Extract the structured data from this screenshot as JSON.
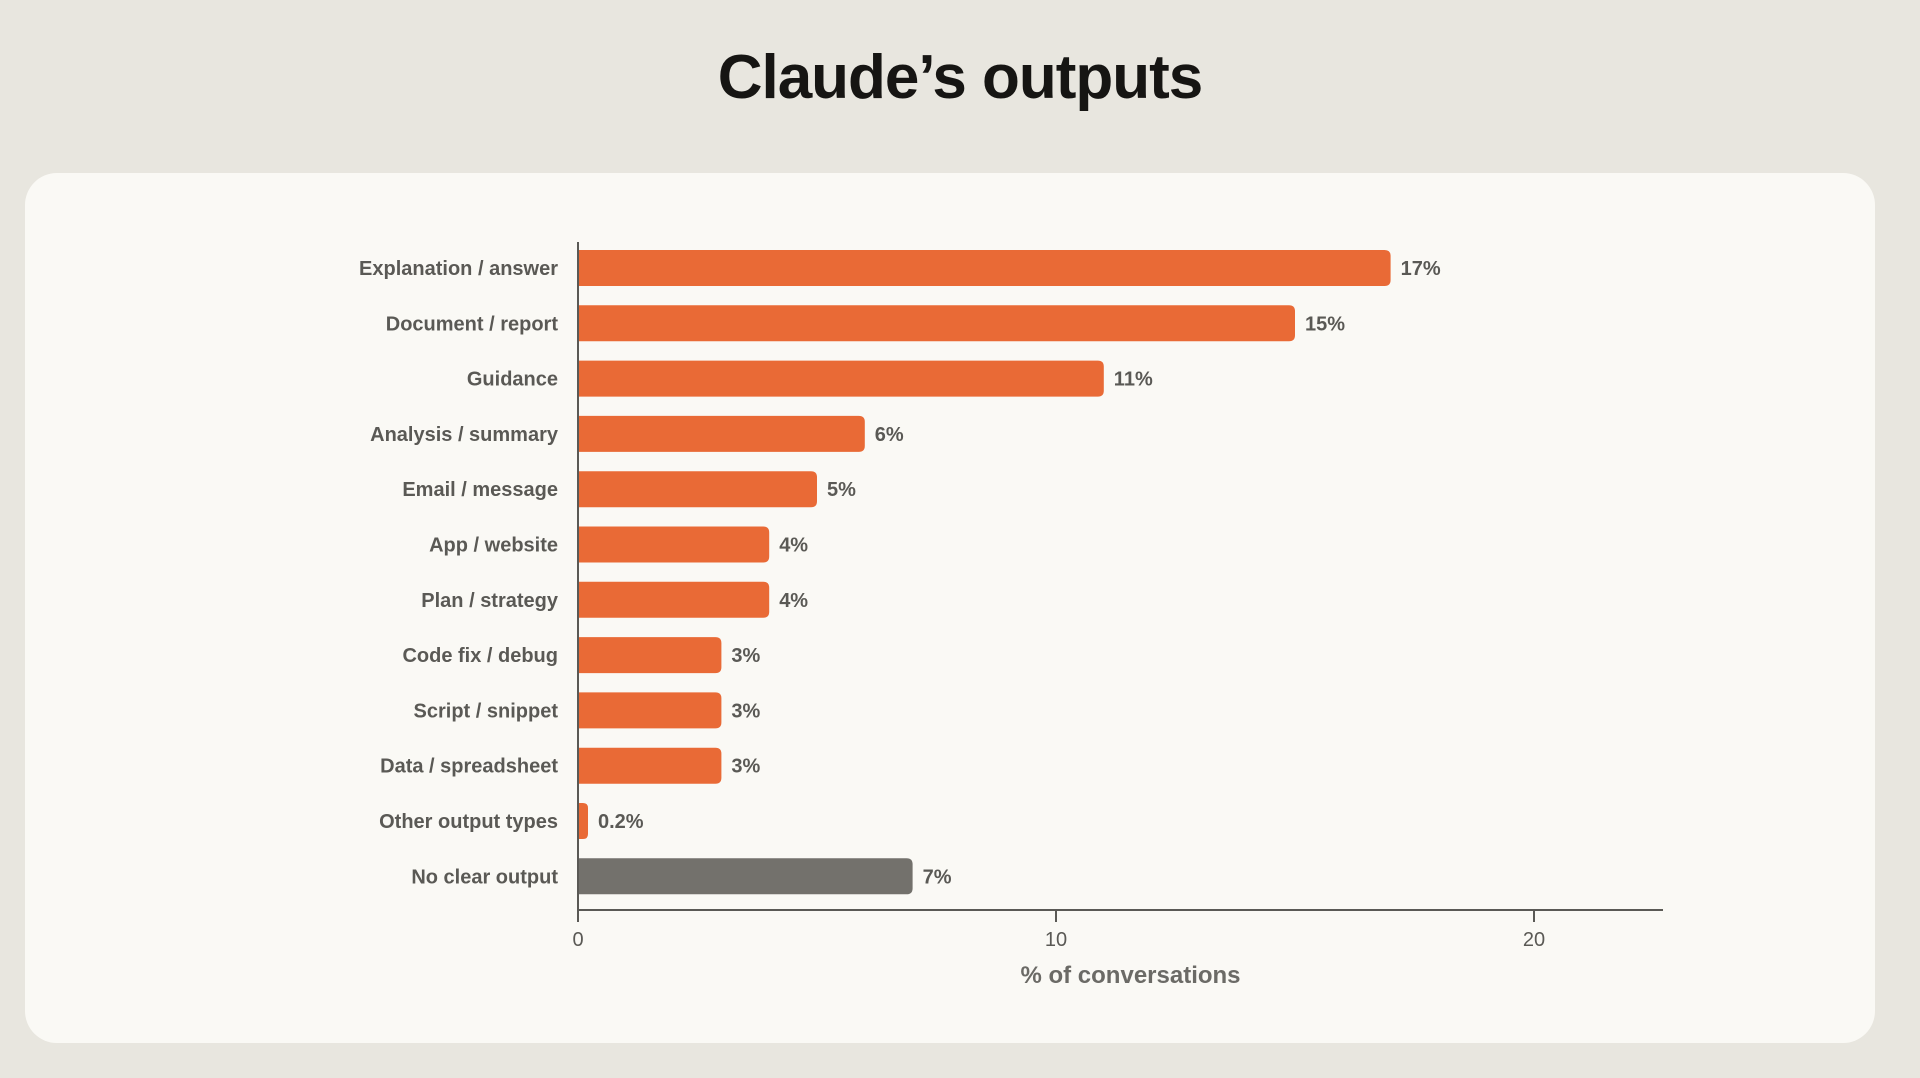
{
  "title": "Claude’s outputs",
  "colors": {
    "page_background": "#e8e6df",
    "card_background": "#faf9f5",
    "bar_primary": "#e96a36",
    "bar_secondary": "#73716c",
    "axis": "#5a5955",
    "text": "#5a5955"
  },
  "chart_data": {
    "type": "bar",
    "orientation": "horizontal",
    "title": "Claude’s outputs",
    "xlabel": "% of conversations",
    "ylabel": "",
    "xlim": [
      0,
      22.7
    ],
    "x_ticks": [
      0,
      10,
      20
    ],
    "x_tick_labels": [
      "0",
      "10",
      "20"
    ],
    "grid": false,
    "categories": [
      "Explanation / answer",
      "Document / report",
      "Guidance",
      "Analysis / summary",
      "Email / message",
      "App / website",
      "Plan / strategy",
      "Code fix / debug",
      "Script / snippet",
      "Data / spreadsheet",
      "Other output types",
      "No clear output"
    ],
    "values": [
      17,
      15,
      11,
      6,
      5,
      4,
      4,
      3,
      3,
      3,
      0.2,
      7
    ],
    "value_labels": [
      "17%",
      "15%",
      "11%",
      "6%",
      "5%",
      "4%",
      "4%",
      "3%",
      "3%",
      "3%",
      "0.2%",
      "7%"
    ],
    "bar_colors": [
      "#e96a36",
      "#e96a36",
      "#e96a36",
      "#e96a36",
      "#e96a36",
      "#e96a36",
      "#e96a36",
      "#e96a36",
      "#e96a36",
      "#e96a36",
      "#e96a36",
      "#73716c"
    ]
  }
}
